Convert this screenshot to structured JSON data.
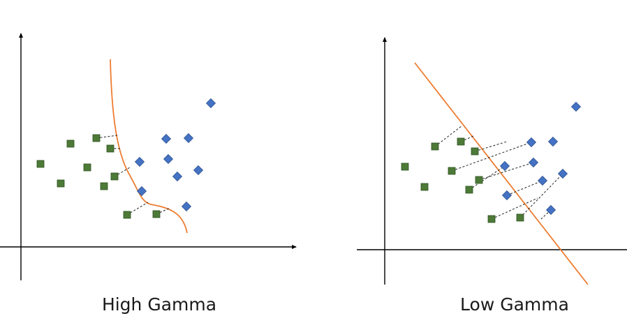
{
  "panels": {
    "left": {
      "caption": "High Gamma"
    },
    "right": {
      "caption": "Low Gamma"
    }
  },
  "colors": {
    "square_fill": "#4d7a37",
    "square_stroke": "#2e5120",
    "diamond_fill": "#4472c4",
    "diamond_stroke": "#2f528f",
    "boundary": "#ed7d31",
    "axis": "#000000",
    "dash": "#222222"
  }
}
